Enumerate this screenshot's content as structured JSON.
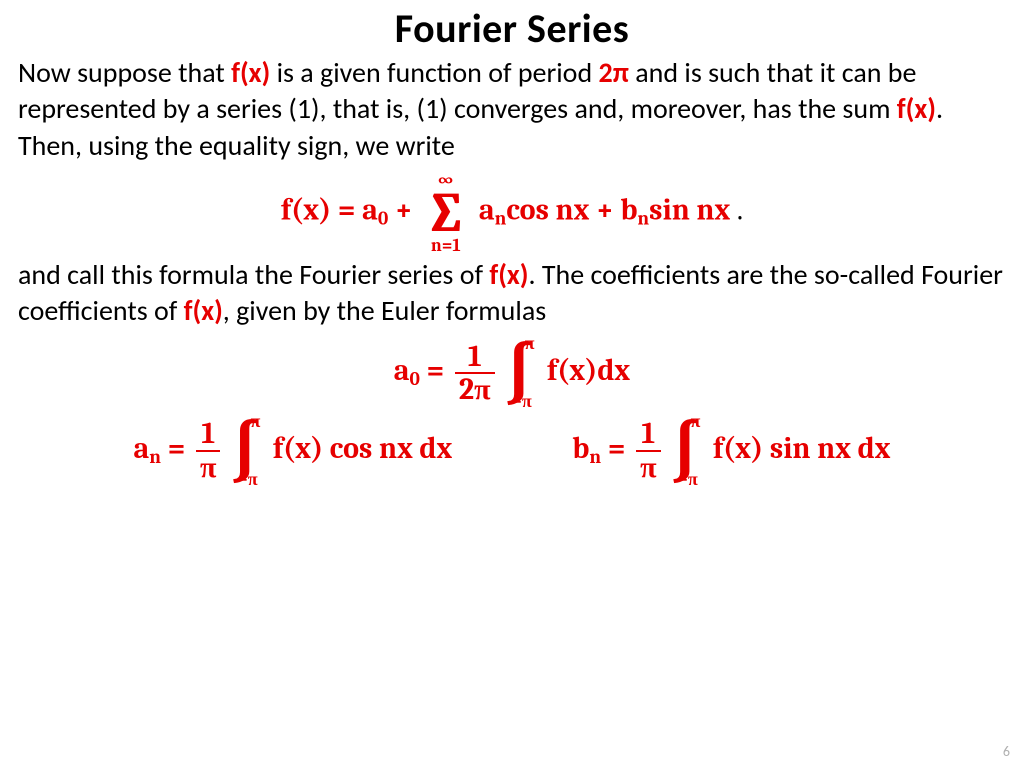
{
  "title": "Fourier Series",
  "page_number": "6",
  "colors": {
    "highlight": "#e60000",
    "body_text": "#000000",
    "page_num": "#b0b0b0",
    "background": "#ffffff"
  },
  "fonts": {
    "body_pt": 28,
    "title_pt": 40,
    "formula_pt": 30
  },
  "para1": {
    "t1": "Now suppose that ",
    "h1": "f(x)",
    "t2": " is a given function of period ",
    "h2": "2π",
    "t3": " and is such that it can be represented by a series (1), that is, (1) converges and, moreover, has the sum ",
    "h3": "f(x)",
    "t4": ". Then, using the equality sign, we write"
  },
  "series_formula": {
    "lhs": "f(x) = a",
    "a0_sub": "0",
    "plus": " + ",
    "sum_top": "∞",
    "sum_sym": "∑",
    "sum_bot": "n=1",
    "term_a": " a",
    "n_sub": "n",
    "cos": "cos nx + b",
    "sin": "sin nx",
    "period": " ."
  },
  "para2": {
    "t1": "and call this formula the Fourier series of ",
    "h1": "f(x)",
    "t2": ". The coefficients are the so-called Fourier coefficients of ",
    "h2": "f(x)",
    "t3": ", given by the Euler formulas"
  },
  "a0_formula": {
    "lhs": "a",
    "sub0": "0",
    "eq": " = ",
    "frac_num": "1",
    "frac_den": "2π",
    "int_top": "π",
    "int_sym": "∫",
    "int_bot": "−π",
    "rhs": " f(x)dx"
  },
  "an_formula": {
    "lhs": "a",
    "subn": "n",
    "eq": " = ",
    "frac_num": "1",
    "frac_den": "π",
    "int_top": "π",
    "int_sym": "∫",
    "int_bot": "−π",
    "rhs": " f(x) cos nx dx"
  },
  "bn_formula": {
    "lhs": "b",
    "subn": "n",
    "eq": " = ",
    "frac_num": "1",
    "frac_den": "π",
    "int_top": "π",
    "int_sym": "∫",
    "int_bot": "−π",
    "rhs": " f(x) sin nx dx"
  }
}
